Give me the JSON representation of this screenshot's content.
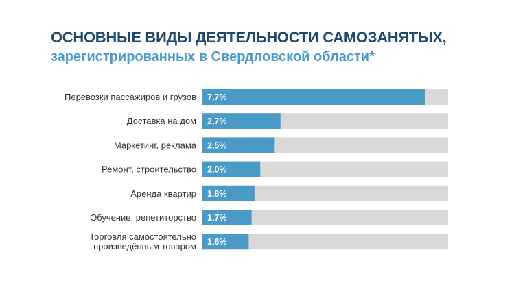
{
  "chart_data": {
    "type": "bar",
    "orientation": "horizontal",
    "title": "ОСНОВНЫЕ ВИДЫ ДЕЯТЕЛЬНОСТИ САМОЗАНЯТЫХ,",
    "subtitle": "зарегистрированных в Свердловской области*",
    "categories": [
      [
        "Перевозки пассажиров и грузов"
      ],
      [
        "Доставка на дом"
      ],
      [
        "Маркетинг, реклама"
      ],
      [
        "Ремонт, строительство"
      ],
      [
        "Аренда квартир"
      ],
      [
        "Обучение, репетиторство"
      ],
      [
        "Торговля самостоятельно",
        "произведённым товаром"
      ]
    ],
    "values": [
      7.7,
      2.7,
      2.5,
      2.0,
      1.8,
      1.7,
      1.6
    ],
    "value_labels": [
      "7,7%",
      "2,7%",
      "2,5%",
      "2,0%",
      "1,8%",
      "1,7%",
      "1,6%"
    ],
    "xlim": [
      0,
      8.5
    ],
    "colors": {
      "bar": "#4a9ac7",
      "track": "#d9d9d9",
      "title": "#1e4a6b",
      "subtitle": "#4a9ac7"
    },
    "grid": false,
    "legend": "none"
  }
}
